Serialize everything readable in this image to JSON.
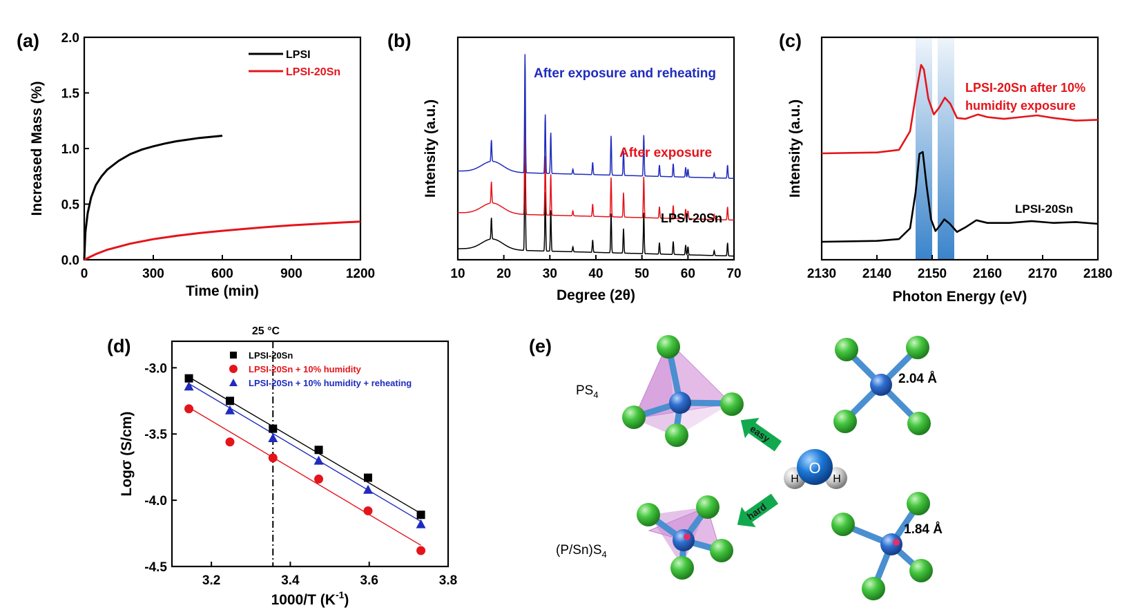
{
  "figure": {
    "panel_labels": [
      "(a)",
      "(b)",
      "(c)",
      "(d)",
      "(e)"
    ]
  },
  "chart_data": [
    {
      "panel": "(a)",
      "type": "line",
      "xlabel": "Time (min)",
      "ylabel": "Increased Mass (%)",
      "xlim": [
        0,
        1200
      ],
      "ylim": [
        0,
        2.0
      ],
      "xticks": [
        0,
        300,
        600,
        900,
        1200
      ],
      "yticks": [
        0.0,
        0.5,
        1.0,
        1.5,
        2.0
      ],
      "ytick_labels": [
        "0.0",
        "0.5",
        "1.0",
        "1.5",
        "2.0"
      ],
      "legend_position": "top-right",
      "series": [
        {
          "name": "LPSI",
          "color": "#000000",
          "x": [
            0,
            5,
            15,
            30,
            50,
            75,
            100,
            150,
            200,
            250,
            300,
            350,
            400,
            450,
            500,
            550,
            600
          ],
          "y": [
            0.0,
            0.25,
            0.42,
            0.56,
            0.67,
            0.75,
            0.81,
            0.89,
            0.95,
            0.99,
            1.02,
            1.045,
            1.065,
            1.08,
            1.095,
            1.105,
            1.115
          ]
        },
        {
          "name": "LPSI-20Sn",
          "color": "#e4141b",
          "x": [
            0,
            50,
            100,
            200,
            300,
            400,
            500,
            600,
            700,
            800,
            900,
            1000,
            1100,
            1200
          ],
          "y": [
            0.0,
            0.05,
            0.09,
            0.145,
            0.185,
            0.215,
            0.24,
            0.26,
            0.278,
            0.295,
            0.31,
            0.322,
            0.333,
            0.343
          ]
        }
      ]
    },
    {
      "panel": "(b)",
      "type": "line",
      "xlabel": "Degree (2θ)",
      "ylabel": "Intensity (a.u.)",
      "xlim": [
        10,
        70
      ],
      "xticks": [
        10,
        20,
        30,
        40,
        50,
        60,
        70
      ],
      "y_tick_labels_shown": false,
      "baselines": [
        0.0,
        0.44,
        0.95
      ],
      "peaks": [
        {
          "x": 17.3,
          "h": 0.26
        },
        {
          "x": 24.6,
          "h": 1.45
        },
        {
          "x": 29.0,
          "h": 0.72
        },
        {
          "x": 30.2,
          "h": 0.5
        },
        {
          "x": 35.0,
          "h": 0.06
        },
        {
          "x": 39.3,
          "h": 0.15
        },
        {
          "x": 43.3,
          "h": 0.48
        },
        {
          "x": 46.0,
          "h": 0.3
        },
        {
          "x": 50.4,
          "h": 0.5
        },
        {
          "x": 53.8,
          "h": 0.14
        },
        {
          "x": 56.8,
          "h": 0.16
        },
        {
          "x": 59.5,
          "h": 0.12
        },
        {
          "x": 60.0,
          "h": 0.1
        },
        {
          "x": 65.7,
          "h": 0.06
        },
        {
          "x": 68.6,
          "h": 0.16
        }
      ],
      "hump": {
        "center": 17.5,
        "width": 3.2,
        "h": 0.13
      },
      "series": [
        {
          "name": "LPSI-20Sn",
          "color": "#000000"
        },
        {
          "name": "After exposure",
          "color": "#e4141b"
        },
        {
          "name": "After exposure and reheating",
          "color": "#1f2bbd"
        }
      ]
    },
    {
      "panel": "(c)",
      "type": "line",
      "xlabel": "Photon Energy (eV)",
      "ylabel": "Intensity (a.u.)",
      "xlim": [
        2130,
        2180
      ],
      "xticks": [
        2130,
        2140,
        2150,
        2160,
        2170,
        2180
      ],
      "y_tick_labels_shown": false,
      "highlight_bands": [
        [
          2147,
          2150
        ],
        [
          2151,
          2154
        ]
      ],
      "highlight_color": "#2f7dc8",
      "series": [
        {
          "name": "LPSI-20Sn",
          "color": "#000000",
          "x": [
            2130,
            2140,
            2144,
            2146,
            2147,
            2147.7,
            2148.3,
            2149.0,
            2149.8,
            2150.6,
            2151.4,
            2152.2,
            2153.2,
            2154.5,
            2156.0,
            2158.0,
            2160.0,
            2164.0,
            2168.0,
            2172.0,
            2176.0,
            2180.0
          ],
          "y": [
            0.0,
            0.01,
            0.03,
            0.15,
            0.55,
            0.98,
            1.0,
            0.62,
            0.25,
            0.12,
            0.18,
            0.25,
            0.2,
            0.11,
            0.16,
            0.24,
            0.21,
            0.21,
            0.23,
            0.21,
            0.22,
            0.2
          ]
        },
        {
          "name": "LPSI-20Sn after 10% humidity exposure",
          "color": "#e4141b",
          "x": [
            2130,
            2140,
            2144,
            2146,
            2147.2,
            2148.0,
            2148.5,
            2149.3,
            2150.3,
            2151.3,
            2152.3,
            2153.3,
            2154.5,
            2156.0,
            2158.3,
            2160.0,
            2163.0,
            2166.0,
            2169.0,
            2172.0,
            2176.0,
            2180.0
          ],
          "y": [
            0.0,
            0.01,
            0.04,
            0.25,
            0.72,
            1.0,
            0.95,
            0.62,
            0.44,
            0.52,
            0.63,
            0.56,
            0.4,
            0.39,
            0.44,
            0.41,
            0.39,
            0.41,
            0.43,
            0.4,
            0.37,
            0.38
          ]
        }
      ]
    },
    {
      "panel": "(d)",
      "type": "scatter",
      "xlabel": "1000/T (K⁻¹)",
      "ylabel": "Logσ (S/cm)",
      "xlim": [
        3.1,
        3.8
      ],
      "ylim": [
        -4.5,
        -2.8
      ],
      "xticks": [
        3.2,
        3.4,
        3.6,
        3.8
      ],
      "xtick_labels": [
        "3.2",
        "3.4",
        "3.6",
        "3.8"
      ],
      "yticks": [
        -3.0,
        -3.5,
        -4.0,
        -4.5
      ],
      "ytick_labels": [
        "-3.0",
        "-3.5",
        "-4.0",
        "-4.5"
      ],
      "legend_position": "top-left",
      "annotation": {
        "text": "25 °C",
        "x": 3.356
      },
      "series": [
        {
          "name": "LPSI-20Sn",
          "color": "#000000",
          "marker": "square",
          "x": [
            3.143,
            3.247,
            3.356,
            3.472,
            3.597,
            3.731
          ],
          "y": [
            -3.08,
            -3.25,
            -3.46,
            -3.62,
            -3.83,
            -4.11
          ],
          "fit": [
            [
              3.143,
              -3.07
            ],
            [
              3.731,
              -4.1
            ]
          ]
        },
        {
          "name": "LPSI-20Sn + 10% humidity",
          "color": "#e4141b",
          "marker": "circle",
          "x": [
            3.143,
            3.247,
            3.356,
            3.472,
            3.597,
            3.731
          ],
          "y": [
            -3.31,
            -3.56,
            -3.68,
            -3.84,
            -4.08,
            -4.38
          ],
          "fit": [
            [
              3.143,
              -3.3
            ],
            [
              3.731,
              -4.34
            ]
          ]
        },
        {
          "name": "LPSI-20Sn + 10% humidity + reheating",
          "color": "#1f2bbd",
          "marker": "triangle",
          "x": [
            3.143,
            3.247,
            3.356,
            3.472,
            3.597,
            3.731
          ],
          "y": [
            -3.14,
            -3.32,
            -3.53,
            -3.7,
            -3.92,
            -4.18
          ],
          "fit": [
            [
              3.143,
              -3.12
            ],
            [
              3.731,
              -4.16
            ]
          ]
        }
      ]
    }
  ],
  "panel_e": {
    "labels": {
      "ps4": "PS",
      "ps4_sub": "4",
      "psns4": "(P/Sn)S",
      "psns4_sub": "4",
      "bond_upper": "2.04 Å",
      "bond_lower": "1.84 Å",
      "easy": "easy",
      "hard": "hard",
      "water_o": "O",
      "water_h1": "H",
      "water_h2": "H"
    },
    "colors": {
      "sulfur": "#3ec03e",
      "phosphorus": "#2f6fd0",
      "tin": "#e0306a",
      "bond": "#4a8fd0",
      "polyhedron": "#d9a3dd",
      "arrow": "#12a94e",
      "hydrogen": "#c8c8c8"
    }
  }
}
